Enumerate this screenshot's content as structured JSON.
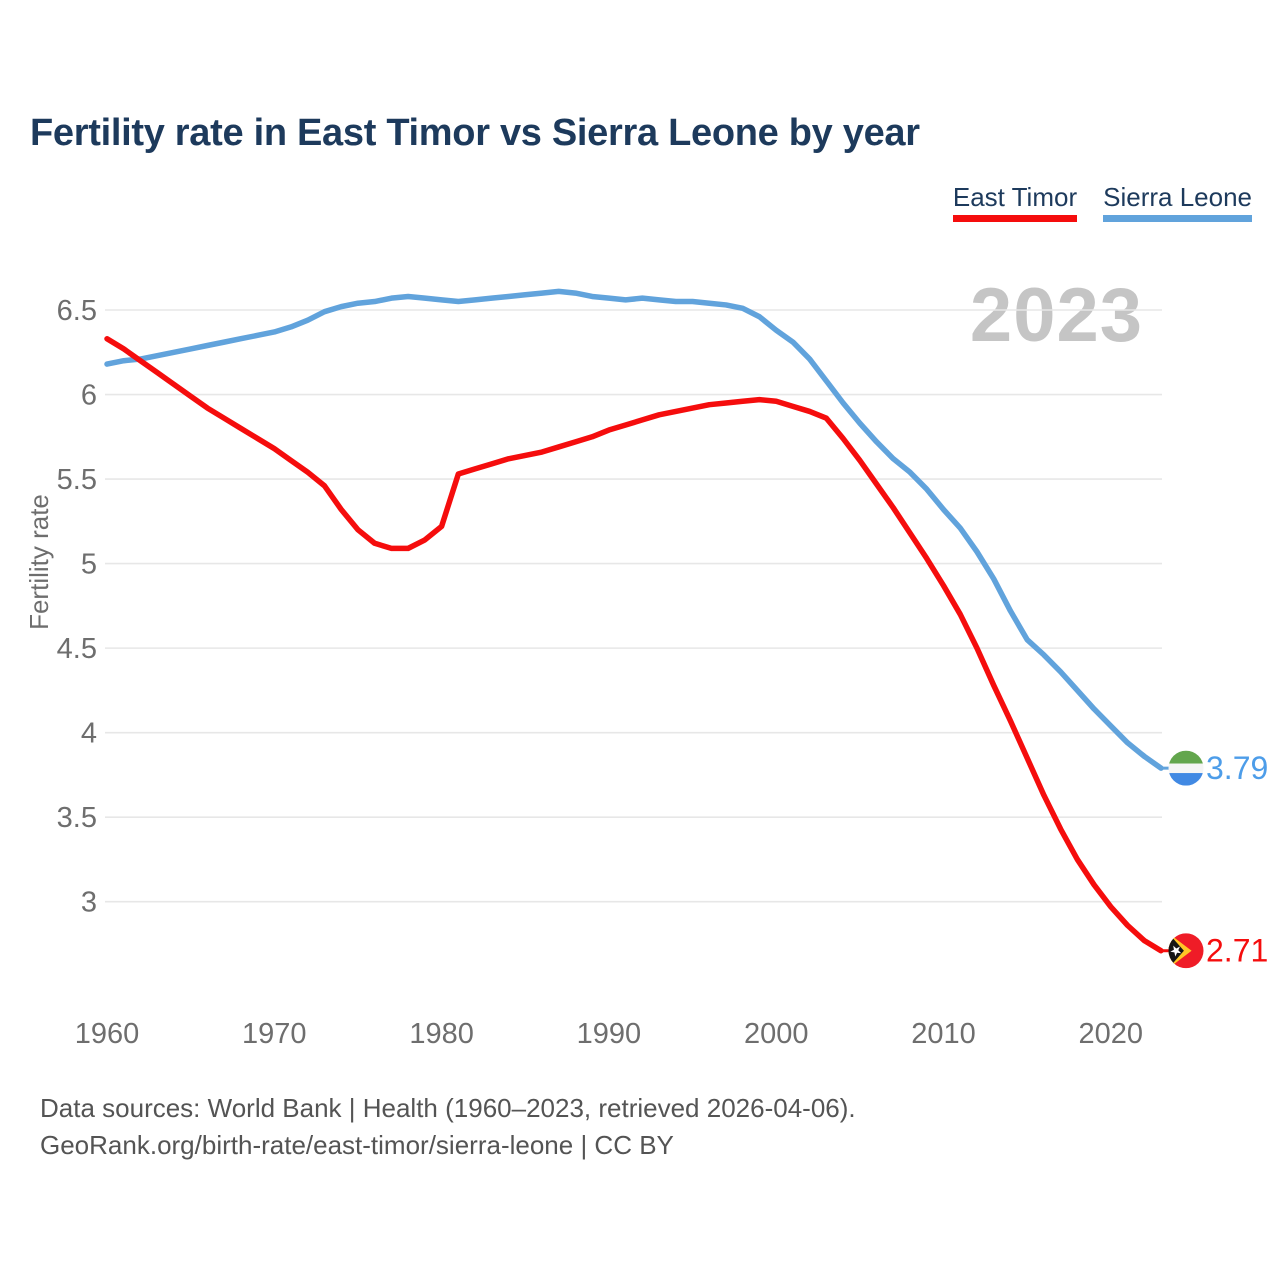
{
  "header": {
    "title": "Fertility rate in East Timor vs Sierra Leone by year"
  },
  "legend": {
    "position": "top-right",
    "items": [
      {
        "label": "East Timor",
        "color": "#f50d0d"
      },
      {
        "label": "Sierra Leone",
        "color": "#61a3dc"
      }
    ]
  },
  "watermark": "2023",
  "chart_data": {
    "type": "line",
    "title": "Fertility rate in East Timor vs Sierra Leone by year",
    "xlabel": "",
    "ylabel": "Fertility rate",
    "xlim": [
      1960,
      2023
    ],
    "ylim": [
      2.5,
      6.9
    ],
    "grid": true,
    "x_ticks": [
      1960,
      1970,
      1980,
      1990,
      2000,
      2010,
      2020
    ],
    "y_ticks": [
      6.5,
      6,
      5.5,
      5,
      4.5,
      4,
      3.5,
      3
    ],
    "y_tick_labels": [
      "6.5",
      "6",
      "5.5",
      "5",
      "4.5",
      "4",
      "3.5",
      "3"
    ],
    "x": [
      1960,
      1961,
      1962,
      1963,
      1964,
      1965,
      1966,
      1967,
      1968,
      1969,
      1970,
      1971,
      1972,
      1973,
      1974,
      1975,
      1976,
      1977,
      1978,
      1979,
      1980,
      1981,
      1982,
      1983,
      1984,
      1985,
      1986,
      1987,
      1988,
      1989,
      1990,
      1991,
      1992,
      1993,
      1994,
      1995,
      1996,
      1997,
      1998,
      1999,
      2000,
      2001,
      2002,
      2003,
      2004,
      2005,
      2006,
      2007,
      2008,
      2009,
      2010,
      2011,
      2012,
      2013,
      2014,
      2015,
      2016,
      2017,
      2018,
      2019,
      2020,
      2021,
      2022,
      2023
    ],
    "series": [
      {
        "name": "Sierra Leone",
        "color": "#61a3dc",
        "label_color": "#4d9de9",
        "end_label": "3.79",
        "end_value": 3.79,
        "flag": "sierra-leone",
        "values": [
          6.18,
          6.2,
          6.21,
          6.23,
          6.25,
          6.27,
          6.29,
          6.31,
          6.33,
          6.35,
          6.37,
          6.4,
          6.44,
          6.49,
          6.52,
          6.54,
          6.55,
          6.57,
          6.58,
          6.57,
          6.56,
          6.55,
          6.56,
          6.57,
          6.58,
          6.59,
          6.6,
          6.61,
          6.6,
          6.58,
          6.57,
          6.56,
          6.57,
          6.56,
          6.55,
          6.55,
          6.54,
          6.53,
          6.51,
          6.46,
          6.38,
          6.31,
          6.21,
          6.08,
          5.95,
          5.83,
          5.72,
          5.62,
          5.54,
          5.44,
          5.32,
          5.21,
          5.07,
          4.91,
          4.72,
          4.55,
          4.46,
          4.36,
          4.25,
          4.14,
          4.04,
          3.94,
          3.86,
          3.79
        ]
      },
      {
        "name": "East Timor",
        "color": "#f50d0d",
        "label_color": "#f50d0d",
        "end_label": "2.71",
        "end_value": 2.71,
        "flag": "east-timor",
        "values": [
          6.33,
          6.27,
          6.2,
          6.13,
          6.06,
          5.99,
          5.92,
          5.86,
          5.8,
          5.74,
          5.68,
          5.61,
          5.54,
          5.46,
          5.32,
          5.2,
          5.12,
          5.09,
          5.09,
          5.14,
          5.22,
          5.53,
          5.56,
          5.59,
          5.62,
          5.64,
          5.66,
          5.69,
          5.72,
          5.75,
          5.79,
          5.82,
          5.85,
          5.88,
          5.9,
          5.92,
          5.94,
          5.95,
          5.96,
          5.97,
          5.96,
          5.93,
          5.9,
          5.86,
          5.74,
          5.61,
          5.47,
          5.33,
          5.18,
          5.03,
          4.87,
          4.7,
          4.5,
          4.28,
          4.07,
          3.85,
          3.63,
          3.43,
          3.25,
          3.1,
          2.97,
          2.86,
          2.77,
          2.71
        ]
      }
    ]
  },
  "icons": {
    "sierra_leone_flag": {
      "green": "#63a64d",
      "white": "#f5f5f5",
      "blue": "#4189e3"
    },
    "east_timor_flag": {
      "red": "#ef1c27",
      "yellow": "#ffc726",
      "black": "#151515",
      "star": "#ffffff"
    }
  },
  "footer": {
    "line1": "Data sources: World Bank | Health (1960–2023, retrieved 2026-04-06).",
    "line2": "GeoRank.org/birth-rate/east-timor/sierra-leone | CC BY"
  }
}
